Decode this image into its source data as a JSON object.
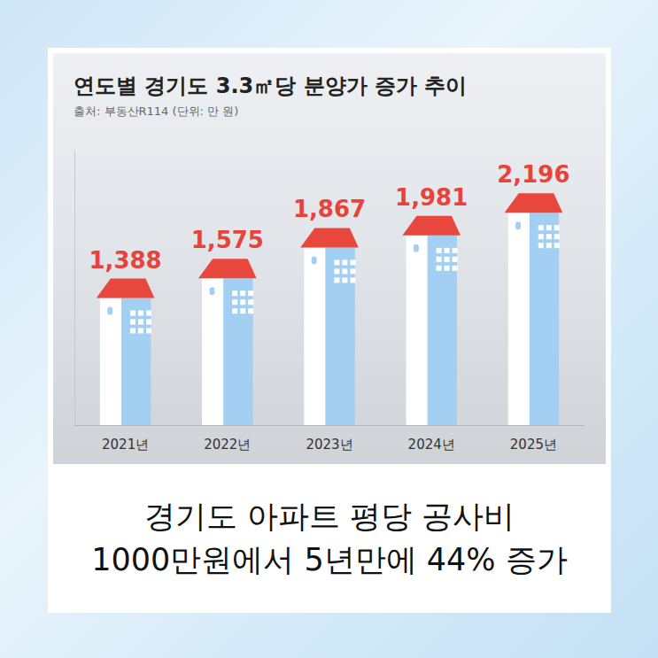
{
  "chart_data": {
    "type": "bar",
    "title": "연도별 경기도 3.3㎡당 분양가 증가 추이",
    "subtitle": "출처: 부동산R114 (단위: 만 원)",
    "categories": [
      "2021년",
      "2022년",
      "2023년",
      "2024년",
      "2025년"
    ],
    "values": [
      1388,
      1575,
      1867,
      1981,
      2196
    ],
    "value_labels": [
      "1,388",
      "1,575",
      "1,867",
      "1,981",
      "2,196"
    ],
    "data_labels": true,
    "color": "#a3d0f2",
    "ylim": [
      0,
      2600
    ],
    "yticks": [],
    "tick_labels": "x",
    "grid": false,
    "annotations": [
      "경기도 아파트 평당 공사비",
      "1000만원에서 5년만에 44% 증가"
    ]
  }
}
